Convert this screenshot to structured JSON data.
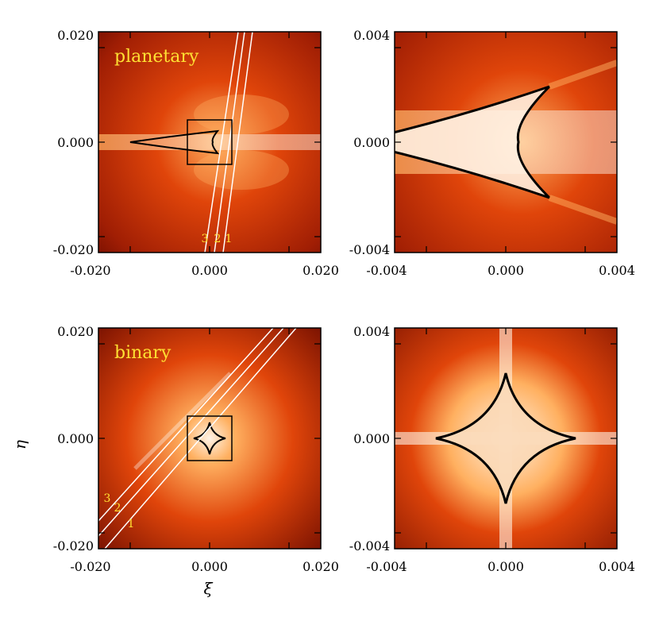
{
  "panels": [
    {
      "id": "planetary-wide",
      "label": "planetary",
      "x_ticks": [
        "-0.020",
        "0.000",
        "0.020"
      ],
      "y_ticks": [
        "0.020",
        "0.000",
        "-0.020"
      ],
      "track_numbers": [
        "3",
        "2",
        "1"
      ],
      "caustic": "planetary"
    },
    {
      "id": "planetary-zoom",
      "label": "",
      "x_ticks": [
        "-0.004",
        "0.000",
        "0.004"
      ],
      "y_ticks": [
        "0.004",
        "0.000",
        "-0.004"
      ],
      "track_numbers": [],
      "caustic": "planetary"
    },
    {
      "id": "binary-wide",
      "label": "binary",
      "x_ticks": [
        "-0.020",
        "0.000",
        "0.020"
      ],
      "y_ticks": [
        "0.020",
        "0.000",
        "-0.020"
      ],
      "track_numbers": [
        "3",
        "2",
        "1"
      ],
      "caustic": "binary"
    },
    {
      "id": "binary-zoom",
      "label": "",
      "x_ticks": [
        "-0.004",
        "0.000",
        "0.004"
      ],
      "y_ticks": [
        "0.004",
        "0.000",
        "-0.004"
      ],
      "track_numbers": [],
      "caustic": "binary"
    }
  ],
  "xlabel": "ξ",
  "ylabel": "η",
  "colors": {
    "dark": "#6e0c00",
    "mid": "#e0450a",
    "bright": "#ffb060",
    "center": "#fff3e6",
    "caustic": "#000000",
    "track": "#ffffff",
    "label": "#ffe033"
  }
}
